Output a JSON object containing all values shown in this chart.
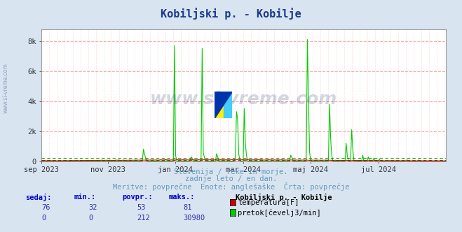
{
  "title": "Kobiljski p. - Kobilje",
  "title_color": "#1a3a8c",
  "bg_color": "#d8e4f0",
  "plot_bg_color": "#ffffff",
  "grid_color_h": "#ffaaaa",
  "grid_color_v": "#ffcccc",
  "subtitle_lines": [
    "Slovenija / reke in morje.",
    "zadnje leto / en dan.",
    "Meritve: povprečne  Enote: anglešaške  Črta: povprečje"
  ],
  "subtitle_color": "#6699bb",
  "xaxis_labels": [
    "sep 2023",
    "nov 2023",
    "jan 2024",
    "mar 2024",
    "maj 2024",
    "jul 2024"
  ],
  "xaxis_tick_frac": [
    0.0,
    0.167,
    0.333,
    0.5,
    0.667,
    0.833
  ],
  "ylim": [
    0,
    8800
  ],
  "yticks": [
    0,
    2000,
    4000,
    6000,
    8000
  ],
  "ytick_labels": [
    "0",
    "2k",
    "4k",
    "6k",
    "8k"
  ],
  "temp_color": "#cc0000",
  "flow_color": "#00cc00",
  "flow_avg_color": "#009900",
  "temp_avg_color": "#cc0000",
  "watermark_text": "www.si-vreme.com",
  "watermark_color": "#1a3a6a",
  "watermark_alpha": 0.2,
  "legend_title": "Kobiljski p. - Kobilje",
  "legend_items": [
    {
      "label": "temperatura[F]",
      "color": "#cc0000"
    },
    {
      "label": "pretok[čevelj3/min]",
      "color": "#00cc00"
    }
  ],
  "stats": {
    "temp": {
      "sedaj": 76,
      "min": 32,
      "povpr": 53,
      "maks": 81
    },
    "flow": {
      "sedaj": 0,
      "min": 0,
      "povpr": 212,
      "maks": 30980
    }
  },
  "n_points": 366,
  "temp_avg_F": 53,
  "flow_avg": 212,
  "flow_max": 30980,
  "spike_data": [
    [
      92,
      800
    ],
    [
      93,
      450
    ],
    [
      94,
      200
    ],
    [
      120,
      7700
    ],
    [
      121,
      400
    ],
    [
      135,
      300
    ],
    [
      136,
      200
    ],
    [
      145,
      7500
    ],
    [
      146,
      600
    ],
    [
      147,
      250
    ],
    [
      158,
      500
    ],
    [
      159,
      300
    ],
    [
      175,
      300
    ],
    [
      176,
      3300
    ],
    [
      177,
      2800
    ],
    [
      178,
      500
    ],
    [
      183,
      3500
    ],
    [
      184,
      1200
    ],
    [
      185,
      400
    ],
    [
      225,
      400
    ],
    [
      226,
      250
    ],
    [
      240,
      8100
    ],
    [
      241,
      4000
    ],
    [
      242,
      600
    ],
    [
      260,
      3800
    ],
    [
      261,
      1500
    ],
    [
      262,
      400
    ],
    [
      275,
      1200
    ],
    [
      276,
      400
    ],
    [
      280,
      2100
    ],
    [
      281,
      800
    ],
    [
      290,
      400
    ],
    [
      295,
      300
    ],
    [
      300,
      200
    ],
    [
      305,
      150
    ],
    [
      330,
      100
    ],
    [
      340,
      80
    ]
  ],
  "temp_spike_data": [
    [
      364,
      3
    ]
  ]
}
